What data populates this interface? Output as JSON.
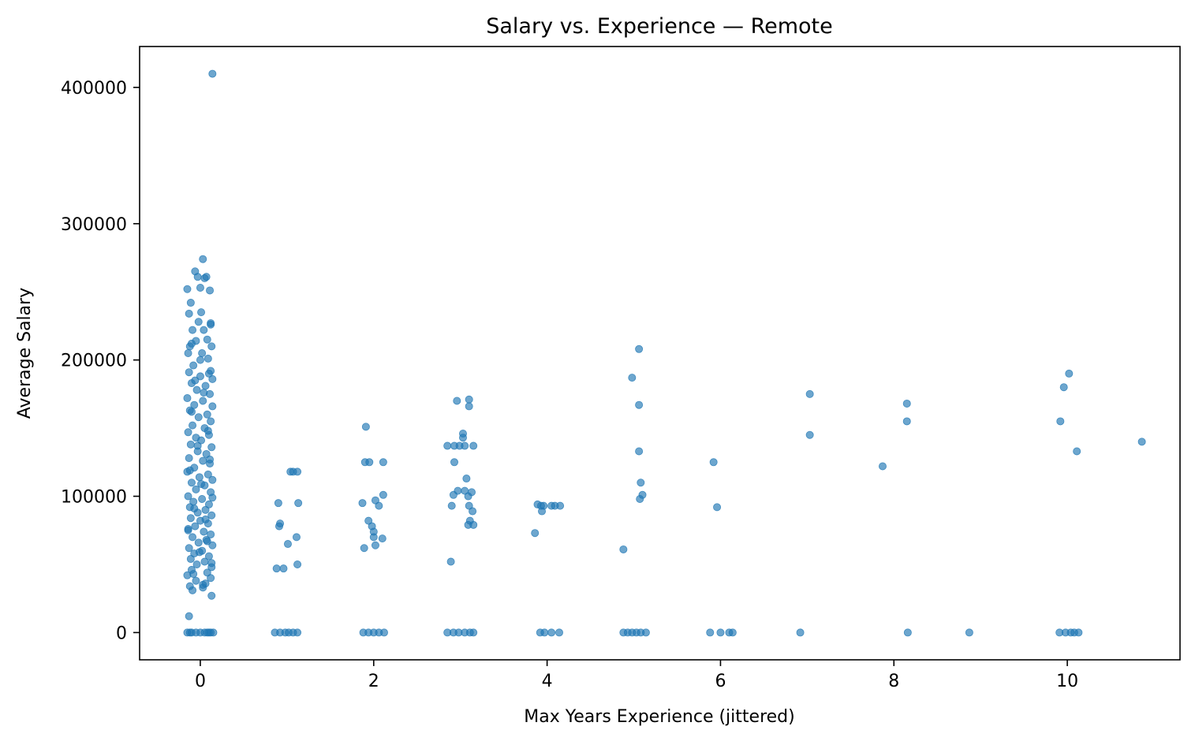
{
  "chart_data": {
    "type": "scatter",
    "title": "Salary vs. Experience — Remote",
    "xlabel": "Max Years Experience (jittered)",
    "ylabel": "Average Salary",
    "xlim": [
      -0.7,
      11.3
    ],
    "ylim": [
      -20000,
      430000
    ],
    "xticks": [
      0,
      2,
      4,
      6,
      8,
      10
    ],
    "yticks": [
      0,
      100000,
      200000,
      300000,
      400000
    ],
    "point_color": "#1f77b4",
    "grid": false,
    "legend": "none",
    "series": [
      {
        "points": [
          [
            0.14,
            410000
          ],
          [
            0.03,
            274000
          ],
          [
            -0.06,
            265000
          ],
          [
            -0.03,
            261000
          ],
          [
            0.05,
            260000
          ],
          [
            0.07,
            261000
          ],
          [
            -0.15,
            252000
          ],
          [
            0.0,
            253000
          ],
          [
            0.11,
            251000
          ],
          [
            -0.11,
            242000
          ],
          [
            0.01,
            235000
          ],
          [
            -0.13,
            234000
          ],
          [
            -0.02,
            228000
          ],
          [
            0.12,
            227000
          ],
          [
            -0.09,
            222000
          ],
          [
            0.04,
            222000
          ],
          [
            0.13,
            210000
          ],
          [
            -0.12,
            210000
          ],
          [
            -0.05,
            214000
          ],
          [
            0.08,
            215000
          ],
          [
            -0.14,
            205000
          ],
          [
            0.02,
            205000
          ],
          [
            0.09,
            201000
          ],
          [
            -0.08,
            196000
          ],
          [
            0.12,
            192000
          ],
          [
            -0.13,
            191000
          ],
          [
            0.0,
            188000
          ],
          [
            0.14,
            186000
          ],
          [
            -0.1,
            183000
          ],
          [
            0.06,
            181000
          ],
          [
            -0.04,
            178000
          ],
          [
            0.11,
            175000
          ],
          [
            -0.15,
            172000
          ],
          [
            0.03,
            170000
          ],
          [
            -0.07,
            167000
          ],
          [
            0.14,
            166000
          ],
          [
            -0.12,
            163000
          ],
          [
            0.08,
            160000
          ],
          [
            -0.02,
            158000
          ],
          [
            0.12,
            155000
          ],
          [
            -0.09,
            152000
          ],
          [
            0.05,
            150000
          ],
          [
            -0.14,
            147000
          ],
          [
            0.1,
            145000
          ],
          [
            -0.05,
            143000
          ],
          [
            0.01,
            141000
          ],
          [
            -0.11,
            138000
          ],
          [
            0.13,
            136000
          ],
          [
            -0.03,
            133000
          ],
          [
            0.07,
            131000
          ],
          [
            -0.13,
            128000
          ],
          [
            0.03,
            126000
          ],
          [
            0.11,
            124000
          ],
          [
            -0.07,
            121000
          ],
          [
            -0.15,
            118000
          ],
          [
            0.09,
            116000
          ],
          [
            -0.01,
            114000
          ],
          [
            0.14,
            112000
          ],
          [
            -0.1,
            110000
          ],
          [
            0.05,
            108000
          ],
          [
            -0.05,
            105000
          ],
          [
            0.12,
            103000
          ],
          [
            -0.14,
            100000
          ],
          [
            0.02,
            98000
          ],
          [
            -0.08,
            96000
          ],
          [
            0.1,
            94000
          ],
          [
            -0.12,
            92000
          ],
          [
            0.06,
            90000
          ],
          [
            -0.03,
            88000
          ],
          [
            0.13,
            86000
          ],
          [
            -0.11,
            84000
          ],
          [
            0.0,
            82000
          ],
          [
            0.09,
            80000
          ],
          [
            -0.06,
            78000
          ],
          [
            -0.14,
            76000
          ],
          [
            0.04,
            74000
          ],
          [
            0.12,
            72000
          ],
          [
            -0.09,
            70000
          ],
          [
            0.07,
            68000
          ],
          [
            -0.02,
            66000
          ],
          [
            0.14,
            64000
          ],
          [
            -0.13,
            62000
          ],
          [
            0.02,
            60000
          ],
          [
            -0.07,
            58000
          ],
          [
            0.1,
            56000
          ],
          [
            -0.11,
            54000
          ],
          [
            0.05,
            52000
          ],
          [
            -0.04,
            50000
          ],
          [
            0.13,
            48000
          ],
          [
            -0.1,
            46000
          ],
          [
            0.08,
            44000
          ],
          [
            -0.15,
            42000
          ],
          [
            0.12,
            40000
          ],
          [
            -0.05,
            38000
          ],
          [
            0.06,
            36000
          ],
          [
            -0.12,
            34000
          ],
          [
            0.03,
            33000
          ],
          [
            -0.09,
            31000
          ],
          [
            0.13,
            27000
          ],
          [
            -0.13,
            12000
          ],
          [
            0.1,
            190000
          ],
          [
            -0.06,
            185000
          ],
          [
            0.04,
            176000
          ],
          [
            -0.1,
            162000
          ],
          [
            0.09,
            148000
          ],
          [
            -0.03,
            137000
          ],
          [
            0.11,
            127000
          ],
          [
            -0.12,
            119000
          ],
          [
            0.01,
            109000
          ],
          [
            0.14,
            99000
          ],
          [
            -0.07,
            91000
          ],
          [
            0.06,
            83000
          ],
          [
            -0.14,
            75000
          ],
          [
            0.08,
            67000
          ],
          [
            -0.01,
            59000
          ],
          [
            0.13,
            51000
          ],
          [
            -0.08,
            43000
          ],
          [
            0.03,
            35000
          ],
          [
            0.12,
            226000
          ],
          [
            -0.1,
            212000
          ],
          [
            0.0,
            200000
          ],
          [
            0.15,
            0
          ],
          [
            -0.15,
            0
          ],
          [
            -0.1,
            0
          ],
          [
            -0.05,
            0
          ],
          [
            0.0,
            0
          ],
          [
            0.05,
            0
          ],
          [
            0.1,
            0
          ],
          [
            -0.12,
            0
          ],
          [
            0.12,
            0
          ],
          [
            0.08,
            0
          ],
          [
            0.9,
            95000
          ],
          [
            0.92,
            80000
          ],
          [
            0.91,
            78000
          ],
          [
            0.88,
            47000
          ],
          [
            0.96,
            47000
          ],
          [
            1.01,
            65000
          ],
          [
            1.04,
            118000
          ],
          [
            1.07,
            118000
          ],
          [
            1.12,
            118000
          ],
          [
            1.13,
            95000
          ],
          [
            1.11,
            70000
          ],
          [
            1.12,
            50000
          ],
          [
            0.86,
            0
          ],
          [
            0.92,
            0
          ],
          [
            0.98,
            0
          ],
          [
            1.02,
            0
          ],
          [
            1.07,
            0
          ],
          [
            1.12,
            0
          ],
          [
            1.91,
            151000
          ],
          [
            1.9,
            125000
          ],
          [
            1.95,
            125000
          ],
          [
            2.11,
            125000
          ],
          [
            1.87,
            95000
          ],
          [
            2.11,
            101000
          ],
          [
            2.02,
            97000
          ],
          [
            2.06,
            93000
          ],
          [
            1.94,
            82000
          ],
          [
            1.98,
            78000
          ],
          [
            2.0,
            74000
          ],
          [
            2.0,
            70000
          ],
          [
            2.1,
            69000
          ],
          [
            2.02,
            64000
          ],
          [
            1.89,
            62000
          ],
          [
            1.88,
            0
          ],
          [
            1.94,
            0
          ],
          [
            2.0,
            0
          ],
          [
            2.06,
            0
          ],
          [
            2.12,
            0
          ],
          [
            2.96,
            170000
          ],
          [
            3.1,
            171000
          ],
          [
            3.1,
            166000
          ],
          [
            3.03,
            146000
          ],
          [
            3.03,
            143000
          ],
          [
            2.85,
            137000
          ],
          [
            2.93,
            137000
          ],
          [
            2.99,
            137000
          ],
          [
            3.05,
            137000
          ],
          [
            3.15,
            137000
          ],
          [
            2.93,
            125000
          ],
          [
            3.07,
            113000
          ],
          [
            2.97,
            104000
          ],
          [
            3.05,
            104000
          ],
          [
            3.13,
            103000
          ],
          [
            2.92,
            101000
          ],
          [
            3.09,
            100000
          ],
          [
            2.9,
            93000
          ],
          [
            3.1,
            93000
          ],
          [
            3.14,
            89000
          ],
          [
            3.11,
            82000
          ],
          [
            3.09,
            79000
          ],
          [
            3.15,
            79000
          ],
          [
            2.89,
            52000
          ],
          [
            2.85,
            0
          ],
          [
            2.92,
            0
          ],
          [
            2.98,
            0
          ],
          [
            3.05,
            0
          ],
          [
            3.11,
            0
          ],
          [
            3.15,
            0
          ],
          [
            3.89,
            94000
          ],
          [
            3.93,
            93000
          ],
          [
            3.96,
            93000
          ],
          [
            4.05,
            93000
          ],
          [
            4.09,
            93000
          ],
          [
            4.15,
            93000
          ],
          [
            3.94,
            89000
          ],
          [
            3.86,
            73000
          ],
          [
            3.92,
            0
          ],
          [
            3.97,
            0
          ],
          [
            4.05,
            0
          ],
          [
            4.14,
            0
          ],
          [
            5.06,
            208000
          ],
          [
            4.98,
            187000
          ],
          [
            5.06,
            167000
          ],
          [
            5.06,
            133000
          ],
          [
            5.08,
            110000
          ],
          [
            5.1,
            101000
          ],
          [
            5.07,
            98000
          ],
          [
            4.88,
            61000
          ],
          [
            4.88,
            0
          ],
          [
            4.93,
            0
          ],
          [
            4.98,
            0
          ],
          [
            5.03,
            0
          ],
          [
            5.08,
            0
          ],
          [
            5.14,
            0
          ],
          [
            5.92,
            125000
          ],
          [
            5.96,
            92000
          ],
          [
            5.88,
            0
          ],
          [
            6.0,
            0
          ],
          [
            6.1,
            0
          ],
          [
            6.14,
            0
          ],
          [
            7.03,
            175000
          ],
          [
            7.03,
            145000
          ],
          [
            6.92,
            0
          ],
          [
            8.15,
            168000
          ],
          [
            8.15,
            155000
          ],
          [
            7.87,
            122000
          ],
          [
            8.16,
            0
          ],
          [
            8.87,
            0
          ],
          [
            10.02,
            190000
          ],
          [
            9.96,
            180000
          ],
          [
            9.92,
            155000
          ],
          [
            10.11,
            133000
          ],
          [
            9.91,
            0
          ],
          [
            9.98,
            0
          ],
          [
            10.04,
            0
          ],
          [
            10.08,
            0
          ],
          [
            10.13,
            0
          ],
          [
            10.86,
            140000
          ]
        ]
      }
    ]
  }
}
